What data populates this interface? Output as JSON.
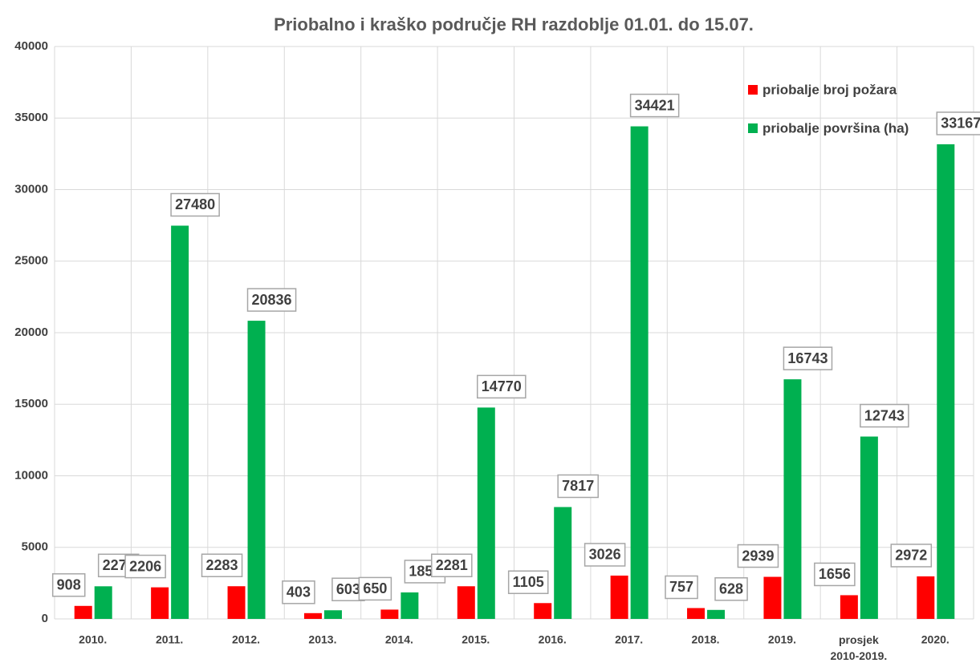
{
  "chart_data": {
    "type": "bar",
    "title": "Priobalno i kraško područje RH razdoblje 01.01. do 15.07.",
    "categories": [
      "2010.",
      "2011.",
      "2012.",
      "2013.",
      "2014.",
      "2015.",
      "2016.",
      "2017.",
      "2018.",
      "2019.",
      "prosjek 2010-2019.",
      "2020."
    ],
    "series": [
      {
        "name": "priobalje broj požara",
        "color": "#ff0000",
        "values": [
          908,
          2206,
          2283,
          403,
          650,
          2281,
          1105,
          3026,
          757,
          2939,
          1656,
          2972
        ]
      },
      {
        "name": "priobalje površina (ha)",
        "color": "#00b050",
        "values": [
          2279,
          27480,
          20836,
          603,
          1851,
          14770,
          7817,
          34421,
          628,
          16743,
          12743,
          33167
        ]
      }
    ],
    "ylim": [
      0,
      40000
    ],
    "yticks": [
      0,
      5000,
      10000,
      15000,
      20000,
      25000,
      30000,
      35000,
      40000
    ],
    "grid": true,
    "legend": "upper right"
  }
}
